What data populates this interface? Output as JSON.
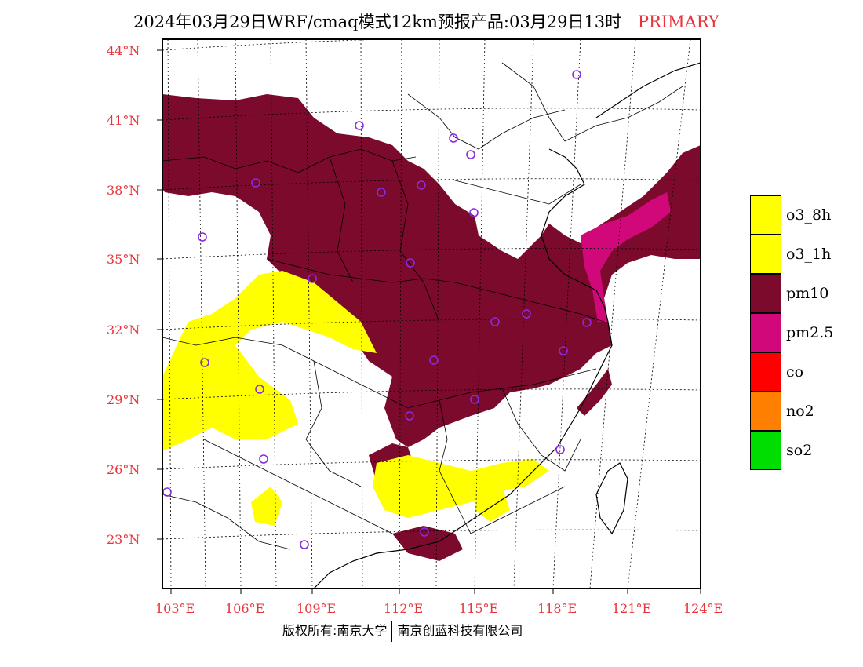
{
  "title": {
    "main": "2024年03月29日WRF/cmaq模式12km预报产品:03月29日13时",
    "tag": "PRIMARY"
  },
  "axes": {
    "lat_labels": [
      "44°N",
      "41°N",
      "38°N",
      "35°N",
      "32°N",
      "29°N",
      "26°N",
      "23°N"
    ],
    "lon_labels": [
      "103°E",
      "106°E",
      "109°E",
      "112°E",
      "115°E",
      "118°E",
      "121°E",
      "124°E"
    ]
  },
  "legend": [
    {
      "label": "o3_8h",
      "color": "#ffff00"
    },
    {
      "label": "o3_1h",
      "color": "#ffff00"
    },
    {
      "label": "pm10",
      "color": "#7b0a2c"
    },
    {
      "label": "pm2.5",
      "color": "#d1087a"
    },
    {
      "label": "co",
      "color": "#ff0000"
    },
    {
      "label": "no2",
      "color": "#ff8000"
    },
    {
      "label": "so2",
      "color": "#00dd00"
    }
  ],
  "footer": {
    "left": "版权所有:南京大学",
    "right": "南京创蓝科技有限公司"
  },
  "colors": {
    "accent": "#e8353c",
    "pm10": "#7b0a2c",
    "pm25": "#d1087a",
    "o3": "#ffff00",
    "station": "#8a2be2"
  }
}
